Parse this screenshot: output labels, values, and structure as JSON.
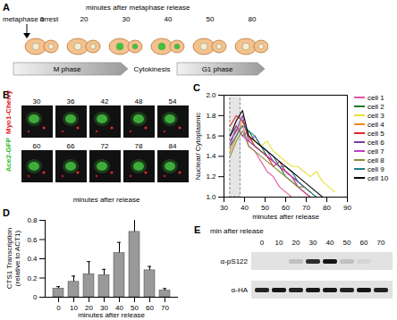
{
  "diagram": {
    "label": "A",
    "arrest_label": "metaphase arrest",
    "axis_label": "minutes after metaphase release",
    "timepoints": [
      0,
      20,
      30,
      40,
      50,
      80
    ],
    "ace2_nuclear": [
      false,
      false,
      true,
      true,
      false,
      false
    ],
    "phases": [
      "M phase",
      "Cytokinesis",
      "G1 phase"
    ]
  },
  "images": {
    "label": "B",
    "times": [
      30,
      36,
      42,
      48,
      54,
      60,
      66,
      72,
      78,
      84
    ],
    "channels": [
      {
        "name": "Ace2-GFP",
        "color": "#2db82d"
      },
      {
        "name": "Myo1-Cherry",
        "color": "#e02020"
      }
    ],
    "axis_label": "minutes after release"
  },
  "chart_data": [
    {
      "panel": "C",
      "type": "line",
      "x_label": "minutes after release",
      "y_label": "Nuclear/ Cytoplasmic",
      "x": [
        33,
        36,
        39,
        42,
        45,
        48,
        51,
        54,
        57,
        60,
        63,
        66,
        69,
        72,
        75,
        78,
        81,
        84,
        87
      ],
      "xlim": [
        30,
        90
      ],
      "xticks": [
        30,
        40,
        50,
        60,
        70,
        80,
        90
      ],
      "ylim": [
        1.0,
        2.0
      ],
      "yticks": [
        {
          "value": 1.0,
          "label": "1.0"
        },
        {
          "value": 1.2,
          "label": "1.2"
        },
        {
          "value": 1.4,
          "label": "1.4"
        },
        {
          "value": 1.6,
          "label": "1.6"
        },
        {
          "value": 1.8,
          "label": "1.8"
        },
        {
          "value": 2.0,
          "label": "2.0"
        }
      ],
      "highlight_x": [
        33,
        38
      ],
      "legend": "right",
      "series": [
        {
          "name": "cell 1",
          "color": "#e754a0",
          "values": [
            1.55,
            1.65,
            1.7,
            1.5,
            1.45,
            1.35,
            1.25,
            1.2,
            1.1,
            1.05,
            1.0,
            1.0,
            null,
            null,
            null,
            null,
            null,
            null,
            null
          ]
        },
        {
          "name": "cell 2",
          "color": "#1a7a2e",
          "values": [
            1.6,
            1.7,
            1.6,
            1.65,
            1.55,
            1.5,
            1.4,
            1.35,
            1.3,
            1.2,
            1.15,
            1.1,
            1.05,
            1.0,
            null,
            null,
            null,
            null,
            null
          ]
        },
        {
          "name": "cell 3",
          "color": "#e8e035",
          "values": [
            1.5,
            1.6,
            1.7,
            1.6,
            1.55,
            1.5,
            1.55,
            1.45,
            1.4,
            1.35,
            1.3,
            1.3,
            1.25,
            1.2,
            1.25,
            1.15,
            1.1,
            1.05,
            null
          ]
        },
        {
          "name": "cell 4",
          "color": "#f08a1c",
          "values": [
            1.45,
            1.6,
            1.75,
            1.6,
            1.5,
            1.45,
            1.4,
            1.35,
            1.3,
            1.25,
            1.2,
            1.1,
            1.05,
            1.0,
            null,
            null,
            null,
            null,
            null
          ]
        },
        {
          "name": "cell 5",
          "color": "#e0262a",
          "values": [
            1.7,
            1.8,
            1.75,
            1.6,
            1.5,
            1.45,
            1.4,
            1.3,
            1.35,
            1.25,
            1.2,
            1.15,
            1.1,
            1.05,
            null,
            null,
            null,
            null,
            null
          ]
        },
        {
          "name": "cell 6",
          "color": "#7a3d9a",
          "values": [
            1.55,
            1.65,
            1.8,
            1.55,
            1.5,
            1.45,
            1.4,
            1.35,
            1.3,
            1.25,
            1.2,
            1.15,
            1.1,
            null,
            null,
            null,
            null,
            null,
            null
          ]
        },
        {
          "name": "cell 7",
          "color": "#c040c0",
          "values": [
            1.5,
            1.7,
            1.6,
            1.55,
            1.6,
            1.5,
            1.45,
            1.35,
            1.3,
            1.25,
            1.2,
            1.1,
            1.05,
            1.0,
            1.0,
            null,
            null,
            null,
            null
          ]
        },
        {
          "name": "cell 8",
          "color": "#8c8c3c",
          "values": [
            1.4,
            1.55,
            1.65,
            1.5,
            1.45,
            1.4,
            1.35,
            1.3,
            1.25,
            1.2,
            1.15,
            1.1,
            1.1,
            1.05,
            1.0,
            null,
            null,
            null,
            null
          ]
        },
        {
          "name": "cell 9",
          "color": "#1f7f8f",
          "values": [
            1.5,
            1.6,
            1.7,
            1.65,
            1.6,
            1.5,
            1.45,
            1.4,
            1.3,
            1.3,
            1.25,
            1.15,
            1.1,
            1.05,
            1.0,
            null,
            null,
            null,
            null
          ]
        },
        {
          "name": "cell 10",
          "color": "#000000",
          "values": [
            1.6,
            1.75,
            1.85,
            1.6,
            1.55,
            1.5,
            1.45,
            1.4,
            1.35,
            1.3,
            1.25,
            1.2,
            1.15,
            1.1,
            1.05,
            1.0,
            null,
            null,
            null
          ]
        }
      ]
    },
    {
      "panel": "D",
      "type": "bar",
      "x_label": "minutes after release",
      "y_label": "CTS1 Transcription (relative to ACT1)",
      "categories": [
        "0",
        "10",
        "20",
        "30",
        "40",
        "50",
        "60",
        "70"
      ],
      "values": [
        0.09,
        0.16,
        0.24,
        0.23,
        0.46,
        0.68,
        0.28,
        0.07
      ],
      "errors": [
        0.02,
        0.06,
        0.13,
        0.06,
        0.11,
        0.18,
        0.04,
        0.02
      ],
      "color": "#999999",
      "ylim": [
        0,
        0.8
      ],
      "yticks": [
        0,
        0.2,
        0.4,
        0.6,
        0.8
      ]
    }
  ],
  "blot": {
    "label": "E",
    "header": "min after release",
    "lanes": [
      0,
      10,
      20,
      30,
      40,
      50,
      60,
      70
    ],
    "rows": [
      {
        "name": "α-pS122",
        "intensity": [
          0.0,
          0.0,
          0.15,
          0.8,
          0.9,
          0.15,
          0.05,
          0.0
        ]
      },
      {
        "name": "α-HA",
        "intensity": [
          0.85,
          0.9,
          0.85,
          0.9,
          0.9,
          0.85,
          0.9,
          0.85
        ]
      }
    ]
  }
}
